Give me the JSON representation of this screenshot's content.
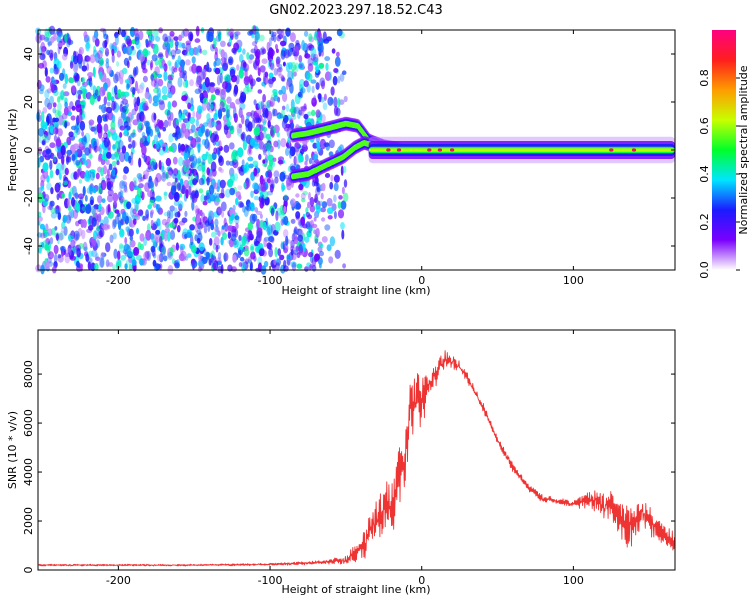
{
  "title": "GN02.2023.297.18.52.C43",
  "chart_data": [
    {
      "type": "heatmap",
      "xlabel": "Height of straight line (km)",
      "ylabel": "Frequency (Hz)",
      "xlim": [
        -253,
        167
      ],
      "ylim": [
        -50,
        50
      ],
      "x_ticks": [
        -200,
        -100,
        0,
        100
      ],
      "y_ticks": [
        -40,
        -20,
        0,
        20,
        40
      ],
      "grid": false,
      "colorbar": {
        "label": "Normalized spectral amplitude",
        "range": [
          0,
          1
        ],
        "ticks": [
          "0.0",
          "0.2",
          "0.4",
          "0.6",
          "0.8"
        ],
        "colors": [
          "#ffffff",
          "#7a00ff",
          "#1b1bff",
          "#00e5ff",
          "#00ff2a",
          "#c8ff00",
          "#ff9c00",
          "#ff1e1e",
          "#ff0080"
        ]
      },
      "features": [
        {
          "region": "broadband noise",
          "x_range": [
            -253,
            -65
          ],
          "freq_range": [
            -50,
            50
          ],
          "amplitude_range": [
            0.05,
            0.45
          ]
        },
        {
          "region": "upper diverging branch",
          "points": [
            [
              -85,
              6
            ],
            [
              -75,
              7
            ],
            [
              -62,
              9
            ],
            [
              -50,
              11
            ],
            [
              -42,
              10
            ],
            [
              -35,
              4
            ],
            [
              -25,
              1.5
            ],
            [
              -15,
              0.5
            ]
          ],
          "amplitude": 0.55
        },
        {
          "region": "lower diverging branch",
          "points": [
            [
              -85,
              -11
            ],
            [
              -75,
              -10
            ],
            [
              -62,
              -6
            ],
            [
              -52,
              -3
            ],
            [
              -44,
              1
            ],
            [
              -38,
              3
            ],
            [
              -30,
              1.5
            ],
            [
              -20,
              0.5
            ]
          ],
          "amplitude": 0.55
        },
        {
          "region": "zero-frequency carrier",
          "x_range": [
            -35,
            167
          ],
          "freq": 0,
          "half_width_hz": 2.5,
          "peak_x": [
            -22,
            -15,
            5,
            12,
            20,
            125,
            140
          ],
          "peak_amplitude": 0.95
        }
      ]
    },
    {
      "type": "line",
      "xlabel": "Height of straight line (km)",
      "ylabel": "SNR (10 * v/v)",
      "xlim": [
        -253,
        167
      ],
      "ylim": [
        0,
        9800
      ],
      "x_ticks": [
        -200,
        -100,
        0,
        100
      ],
      "y_ticks": [
        0,
        2000,
        4000,
        6000,
        8000
      ],
      "grid": false,
      "series": [
        {
          "color": "#ee3333",
          "x": [
            -253,
            -200,
            -150,
            -100,
            -70,
            -60,
            -50,
            -40,
            -30,
            -25,
            -20,
            -15,
            -10,
            -8,
            -5,
            0,
            5,
            10,
            15,
            20,
            25,
            30,
            35,
            40,
            50,
            60,
            70,
            80,
            90,
            100,
            110,
            115,
            120,
            125,
            130,
            135,
            140,
            145,
            150,
            160,
            167
          ],
          "values": [
            200,
            200,
            200,
            230,
            300,
            350,
            400,
            900,
            1900,
            2300,
            2700,
            3800,
            4700,
            7200,
            7000,
            6800,
            7500,
            8200,
            8600,
            8500,
            8300,
            7900,
            7300,
            6700,
            5300,
            4200,
            3400,
            2900,
            2800,
            2700,
            2900,
            2900,
            2600,
            2700,
            2200,
            1700,
            1900,
            2300,
            2000,
            1500,
            1100
          ],
          "noise_amplitude": [
            30,
            30,
            30,
            40,
            60,
            80,
            150,
            450,
            750,
            850,
            950,
            1300,
            1500,
            1300,
            1100,
            900,
            650,
            450,
            350,
            300,
            250,
            200,
            180,
            160,
            150,
            140,
            130,
            120,
            120,
            120,
            300,
            400,
            400,
            500,
            700,
            800,
            700,
            600,
            500,
            400,
            300
          ]
        }
      ]
    }
  ]
}
